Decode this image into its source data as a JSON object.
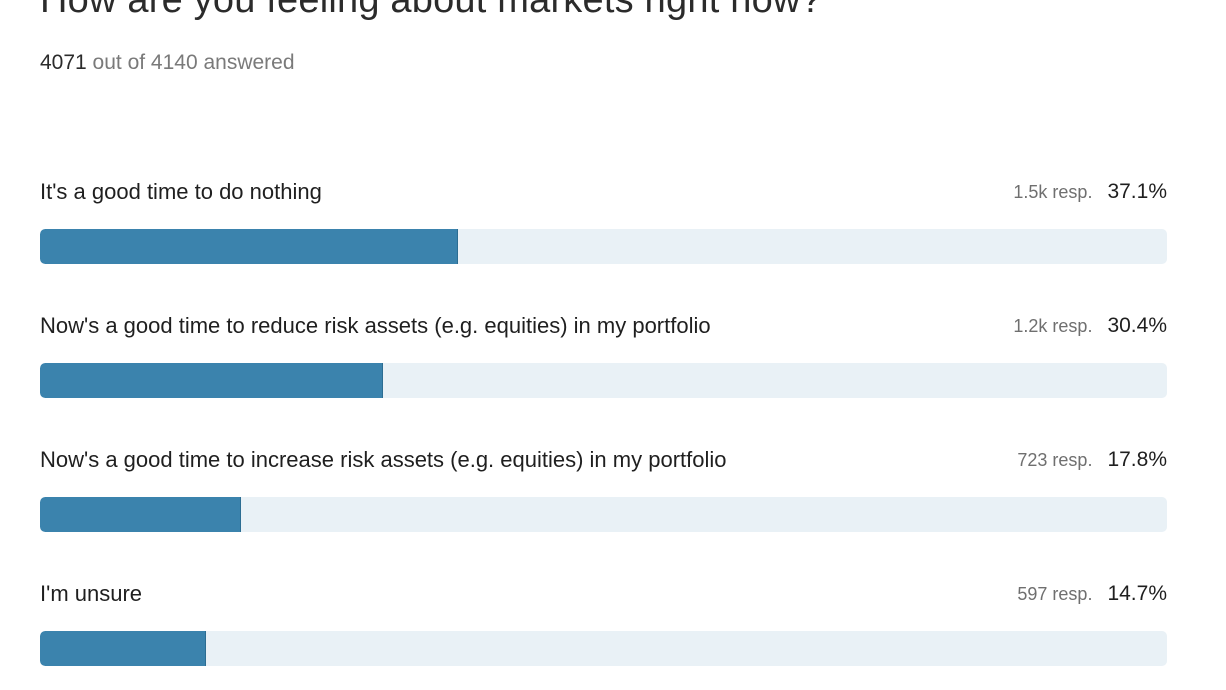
{
  "poll": {
    "title": "How are you feeling about markets right now?",
    "answered_count": "4071",
    "answered_suffix": " out of 4140 answered",
    "accent_color": "#3b83ad",
    "track_color": "#e9f1f6",
    "options": [
      {
        "label": "It's a good time to do nothing",
        "responses": "1.5k resp.",
        "percent": "37.1%",
        "share": 0.371
      },
      {
        "label": "Now's a good time to reduce risk assets (e.g. equities) in my portfolio",
        "responses": "1.2k resp.",
        "percent": "30.4%",
        "share": 0.304
      },
      {
        "label": "Now's a good time to increase risk assets (e.g. equities) in my portfolio",
        "responses": "723 resp.",
        "percent": "17.8%",
        "share": 0.178
      },
      {
        "label": "I'm unsure",
        "responses": "597 resp.",
        "percent": "14.7%",
        "share": 0.147
      }
    ]
  }
}
